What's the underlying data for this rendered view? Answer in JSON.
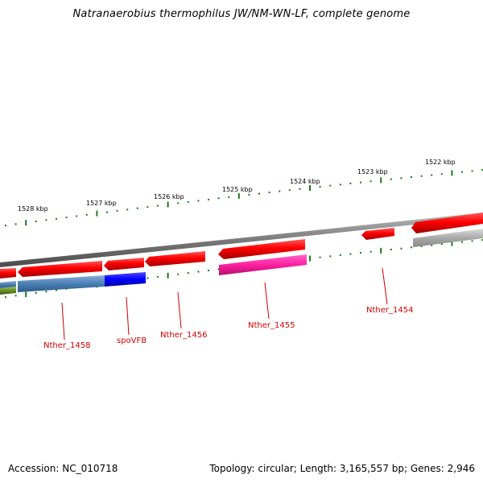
{
  "title": "Natranaerobius thermophilus JW/NM-WN-LF, complete genome",
  "accession": "Accession: NC_010718",
  "summary": "Topology: circular; Length: 3,165,557 bp; Genes: 2,946",
  "colors": {
    "backbone": "#808080",
    "tick": "#1a7a1a",
    "forward_gene": "#ff1a1a",
    "label": "#cc0000",
    "gray_gene": "#bdbdbd",
    "steelblue_feature": "#4a7fb5",
    "blue_feature": "#0000ff",
    "pink_feature": "#ff33aa",
    "olive_feature": "#6b8e23"
  },
  "ticks": [
    {
      "label": "1528 kbp"
    },
    {
      "label": "1527 kbp"
    },
    {
      "label": "1526 kbp"
    },
    {
      "label": "1525 kbp"
    },
    {
      "label": "1524 kbp"
    },
    {
      "label": "1523 kbp"
    },
    {
      "label": "1522 kbp"
    }
  ],
  "genes": [
    {
      "label": "Nther_1458"
    },
    {
      "label": "spoVFB"
    },
    {
      "label": "Nther_1456"
    },
    {
      "label": "Nther_1455"
    },
    {
      "label": "Nther_1454"
    }
  ]
}
